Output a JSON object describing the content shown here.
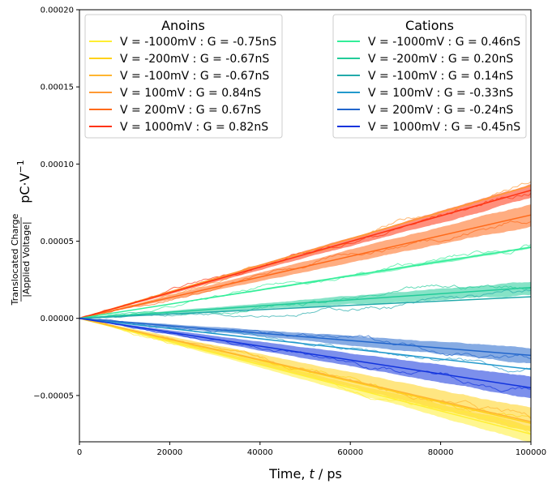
{
  "chart_data": {
    "type": "line",
    "xlabel_prefix": "Time, ",
    "xlabel_var": "t",
    "xlabel_suffix": " / ps",
    "ylabel_numerator": "Translocated Charge",
    "ylabel_denominator": "|Applied Voltage|",
    "ylabel_unit": "pC·V",
    "ylabel_unit_exp": "−1",
    "xlim": [
      0,
      100000
    ],
    "ylim": [
      -8e-05,
      0.0002
    ],
    "x_ticks": [
      0,
      20000,
      40000,
      60000,
      80000,
      100000
    ],
    "x_tick_labels": [
      "0",
      "20000",
      "40000",
      "60000",
      "80000",
      "100000"
    ],
    "y_ticks": [
      -5e-05,
      0,
      5e-05,
      0.0001,
      0.00015,
      0.0002
    ],
    "y_tick_labels": [
      "−0.00005",
      "0.00000",
      "0.00005",
      "0.00010",
      "0.00015",
      "0.00020"
    ],
    "legends": [
      {
        "title": "Anoins",
        "position": "top-left",
        "entries": [
          {
            "label": "V = -1000mV : G = -0.75nS",
            "color": "#ffee33"
          },
          {
            "label": "V = -200mV : G = -0.67nS",
            "color": "#ffd11a"
          },
          {
            "label": "V = -100mV : G = -0.67nS",
            "color": "#ffb530"
          },
          {
            "label": "V = 100mV : G = 0.84nS",
            "color": "#ff9933"
          },
          {
            "label": "V = 200mV : G = 0.67nS",
            "color": "#ff6a1a"
          },
          {
            "label": "V = 1000mV : G = 0.82nS",
            "color": "#ff3311"
          }
        ]
      },
      {
        "title": "Cations",
        "position": "top-right",
        "entries": [
          {
            "label": "V = -1000mV : G = 0.46nS",
            "color": "#33ee99"
          },
          {
            "label": "V = -200mV : G = 0.20nS",
            "color": "#22cc99"
          },
          {
            "label": "V = -100mV : G = 0.14nS",
            "color": "#22aaaa"
          },
          {
            "label": "V = 100mV : G = -0.33nS",
            "color": "#2299cc"
          },
          {
            "label": "V = 200mV : G = -0.24nS",
            "color": "#2266cc"
          },
          {
            "label": "V = 1000mV : G = -0.45nS",
            "color": "#1133dd"
          }
        ]
      }
    ],
    "series": [
      {
        "group": "Anoins",
        "voltage_mV": -1000,
        "conductance_nS": -0.75,
        "color": "#ffee33",
        "end_value": -7.5e-05,
        "band": [
          -8e-05,
          -7e-05
        ]
      },
      {
        "group": "Anoins",
        "voltage_mV": -200,
        "conductance_nS": -0.67,
        "color": "#ffd11a",
        "end_value": -6.8e-05,
        "band": [
          -7.4e-05,
          -5.8e-05
        ]
      },
      {
        "group": "Anoins",
        "voltage_mV": -100,
        "conductance_nS": -0.67,
        "color": "#ffb530",
        "end_value": -6.7e-05,
        "band": null
      },
      {
        "group": "Anoins",
        "voltage_mV": 100,
        "conductance_nS": 0.84,
        "color": "#ff9933",
        "end_value": 8.6e-05,
        "band": null
      },
      {
        "group": "Anoins",
        "voltage_mV": 200,
        "conductance_nS": 0.67,
        "color": "#ff6a1a",
        "end_value": 6.7e-05,
        "band": [
          6e-05,
          7.4e-05
        ]
      },
      {
        "group": "Anoins",
        "voltage_mV": 1000,
        "conductance_nS": 0.82,
        "color": "#ff3311",
        "end_value": 8.3e-05,
        "band": [
          7.8e-05,
          8.7e-05
        ]
      },
      {
        "group": "Cations",
        "voltage_mV": -1000,
        "conductance_nS": 0.46,
        "color": "#33ee99",
        "end_value": 4.6e-05,
        "band": [
          4.5e-05,
          4.7e-05
        ]
      },
      {
        "group": "Cations",
        "voltage_mV": -200,
        "conductance_nS": 0.2,
        "color": "#22cc99",
        "end_value": 2e-05,
        "band": [
          1.5e-05,
          2.4e-05
        ]
      },
      {
        "group": "Cations",
        "voltage_mV": -100,
        "conductance_nS": 0.14,
        "color": "#22aaaa",
        "end_value": 1.4e-05,
        "band": null
      },
      {
        "group": "Cations",
        "voltage_mV": 100,
        "conductance_nS": -0.33,
        "color": "#2299cc",
        "end_value": -3.3e-05,
        "band": null
      },
      {
        "group": "Cations",
        "voltage_mV": 200,
        "conductance_nS": -0.24,
        "color": "#2266cc",
        "end_value": -2.4e-05,
        "band": [
          -2.9e-05,
          -1.9e-05
        ]
      },
      {
        "group": "Cations",
        "voltage_mV": 1000,
        "conductance_nS": -0.45,
        "color": "#1133dd",
        "end_value": -4.5e-05,
        "band": [
          -5.2e-05,
          -3.8e-05
        ]
      }
    ]
  }
}
